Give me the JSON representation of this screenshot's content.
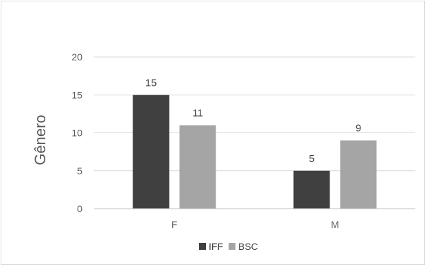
{
  "chart_data": {
    "type": "bar",
    "title": "",
    "xlabel": "",
    "ylabel": "Gênero",
    "categories": [
      "F",
      "M"
    ],
    "series": [
      {
        "name": "IFF",
        "values": [
          15,
          5
        ],
        "color": "#404040"
      },
      {
        "name": "BSC",
        "values": [
          11,
          9
        ],
        "color": "#a5a5a5"
      }
    ],
    "ylim": [
      0,
      20
    ],
    "yticks": [
      0,
      5,
      10,
      15,
      20
    ],
    "grid": true,
    "legend": "bottom",
    "data_labels": true
  }
}
